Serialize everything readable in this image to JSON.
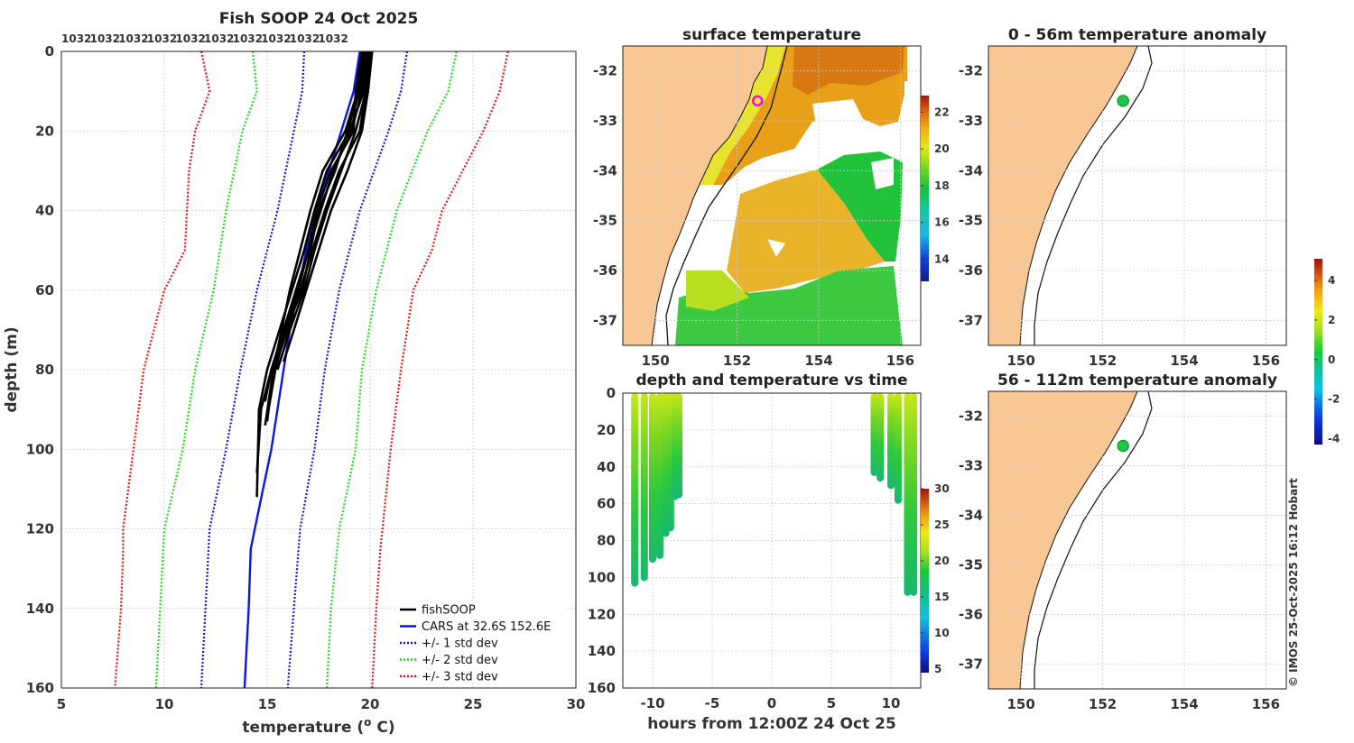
{
  "colors": {
    "land": "#f9c794",
    "fishsoop": "#000000",
    "cars": "#0a17e6",
    "std1": "#1616d8",
    "std2": "#2ad62a",
    "std3": "#e01818",
    "profile_highlight": "#ff00ff"
  },
  "chart_data": [
    {
      "id": "profile",
      "type": "line",
      "title": "Fish SOOP 24 Oct 2025",
      "station_ids": [
        "1032",
        "1032",
        "1032",
        "1032",
        "1032",
        "1032",
        "1032",
        "1032",
        "1032",
        "1032"
      ],
      "xlabel": "temperature (o C)",
      "xlabel_main": "temperature (",
      "xlabel_sup": "o",
      "xlabel_end": " C)",
      "ylabel": "depth (m)",
      "xlim": [
        5,
        30
      ],
      "ylim": [
        160,
        0
      ],
      "xticks": [
        5,
        10,
        15,
        20,
        25,
        30
      ],
      "yticks": [
        0,
        20,
        40,
        60,
        80,
        100,
        120,
        140,
        160
      ],
      "grid": true,
      "legend": [
        {
          "label": "fishSOOP",
          "style": "solid",
          "color_key": "fishsoop"
        },
        {
          "label": "CARS at 32.6S 152.6E",
          "style": "solid",
          "color_key": "cars"
        },
        {
          "label": "+/- 1 std dev",
          "style": "dotted",
          "color_key": "std1"
        },
        {
          "label": "+/- 2 std dev",
          "style": "dotted",
          "color_key": "std2"
        },
        {
          "label": "+/- 3 std dev",
          "style": "dotted",
          "color_key": "std3"
        }
      ],
      "series": [
        {
          "name": "CARS at 32.6S 152.6E",
          "color_key": "cars",
          "depth": [
            0,
            10,
            20,
            30,
            40,
            50,
            60,
            70,
            80,
            90,
            100,
            110,
            120,
            125,
            140,
            160
          ],
          "temp": [
            19.5,
            19.2,
            18.6,
            18.0,
            17.4,
            16.9,
            16.5,
            16.1,
            15.8,
            15.5,
            15.2,
            14.8,
            14.4,
            14.2,
            14.1,
            13.9
          ]
        },
        {
          "name": "+1 std dev",
          "color_key": "std1",
          "depth": [
            0,
            10,
            20,
            40,
            60,
            80,
            100,
            120,
            140,
            160
          ],
          "temp": [
            21.8,
            21.5,
            20.9,
            19.5,
            18.5,
            17.8,
            17.3,
            16.6,
            16.3,
            16.0
          ]
        },
        {
          "name": "-1 std dev",
          "color_key": "std1",
          "depth": [
            0,
            10,
            20,
            40,
            60,
            80,
            100,
            120,
            140,
            160
          ],
          "temp": [
            16.8,
            16.7,
            16.3,
            15.5,
            14.5,
            13.7,
            13.0,
            12.2,
            12.0,
            11.8
          ]
        },
        {
          "name": "+2 std dev",
          "color_key": "std2",
          "depth": [
            0,
            10,
            20,
            40,
            60,
            80,
            100,
            120,
            140,
            160
          ],
          "temp": [
            24.2,
            23.8,
            22.8,
            21.3,
            20.3,
            19.6,
            19.3,
            18.5,
            18.1,
            17.9
          ]
        },
        {
          "name": "-2 std dev",
          "color_key": "std2",
          "depth": [
            0,
            10,
            20,
            40,
            60,
            80,
            100,
            120,
            140,
            160
          ],
          "temp": [
            14.3,
            14.5,
            13.8,
            13.0,
            12.4,
            11.5,
            10.9,
            10.0,
            9.8,
            9.6
          ]
        },
        {
          "name": "+3 std dev",
          "color_key": "std3",
          "depth": [
            0,
            10,
            20,
            30,
            40,
            50,
            60,
            80,
            100,
            120,
            125,
            140,
            160
          ],
          "temp": [
            26.7,
            26.3,
            25.5,
            24.5,
            23.5,
            23.0,
            22.1,
            21.5,
            21.0,
            20.6,
            20.5,
            20.3,
            20.1
          ]
        },
        {
          "name": "-3 std dev",
          "color_key": "std3",
          "depth": [
            0,
            10,
            20,
            30,
            40,
            50,
            60,
            80,
            100,
            120,
            125,
            140,
            160
          ],
          "temp": [
            11.8,
            12.2,
            11.5,
            11.2,
            11.1,
            11.0,
            10.0,
            9.0,
            8.5,
            8.0,
            8.0,
            7.9,
            7.6
          ]
        }
      ],
      "fishsoop_profiles": [
        {
          "depth": [
            0,
            10,
            20,
            30,
            40,
            50,
            60,
            70,
            80,
            90,
            106
          ],
          "temp": [
            19.9,
            19.6,
            19.1,
            18.2,
            17.6,
            17.0,
            16.5,
            15.9,
            15.2,
            14.7,
            14.5
          ]
        },
        {
          "depth": [
            0,
            10,
            20,
            30,
            40,
            50,
            60,
            70,
            80,
            90,
            112
          ],
          "temp": [
            19.8,
            19.7,
            19.0,
            17.9,
            17.3,
            16.8,
            16.2,
            15.6,
            15.0,
            14.6,
            14.5
          ]
        },
        {
          "depth": [
            0,
            10,
            20,
            30,
            40,
            50,
            60,
            70,
            80,
            94
          ],
          "temp": [
            20.0,
            19.8,
            19.5,
            18.5,
            17.8,
            17.2,
            16.6,
            16.0,
            15.3,
            14.9
          ]
        },
        {
          "depth": [
            0,
            10,
            20,
            30,
            40,
            50,
            60,
            70,
            80,
            93
          ],
          "temp": [
            19.7,
            19.4,
            18.8,
            17.7,
            17.1,
            16.6,
            16.1,
            15.7,
            15.3,
            15.0
          ]
        },
        {
          "depth": [
            0,
            10,
            20,
            30,
            40,
            50,
            60,
            70,
            78
          ],
          "temp": [
            20.1,
            19.9,
            19.6,
            18.9,
            18.1,
            17.5,
            16.9,
            16.3,
            15.8
          ]
        },
        {
          "depth": [
            0,
            10,
            20,
            30,
            40,
            50,
            60,
            70,
            80,
            88
          ],
          "temp": [
            19.6,
            19.3,
            19.2,
            18.1,
            17.4,
            17.0,
            16.4,
            15.8,
            15.2,
            14.9
          ]
        },
        {
          "depth": [
            0,
            10,
            20,
            30,
            40,
            50,
            60,
            70,
            80
          ],
          "temp": [
            19.9,
            19.8,
            19.3,
            18.6,
            17.9,
            17.3,
            16.8,
            16.1,
            15.5
          ]
        },
        {
          "depth": [
            0,
            10,
            20,
            30,
            40,
            50,
            60,
            70,
            80,
            92
          ],
          "temp": [
            19.8,
            19.5,
            18.9,
            18.3,
            17.5,
            17.1,
            16.7,
            15.9,
            15.4,
            15.0
          ]
        }
      ]
    },
    {
      "id": "sst",
      "type": "heatmap",
      "title": "surface temperature",
      "xlim": [
        149.2,
        156.5
      ],
      "ylim": [
        -37.5,
        -31.5
      ],
      "xticks": [
        150,
        152,
        154,
        156
      ],
      "yticks": [
        -32,
        -33,
        -34,
        -35,
        -36,
        -37
      ],
      "colorbar": {
        "range": [
          12.8,
          22.9
        ],
        "ticks": [
          14,
          16,
          18,
          20,
          22
        ]
      },
      "station": {
        "lon": 152.5,
        "lat": -32.6
      }
    },
    {
      "id": "time_depth",
      "type": "scatter",
      "title": "depth and temperature vs time",
      "xlabel": "hours from 12:00Z 24 Oct 25",
      "xlim": [
        -12.5,
        12.5
      ],
      "ylim": [
        160,
        0
      ],
      "xticks": [
        -10,
        -5,
        0,
        5,
        10
      ],
      "yticks": [
        0,
        20,
        40,
        60,
        80,
        100,
        120,
        140,
        160
      ],
      "colorbar": {
        "range": [
          4.5,
          30
        ],
        "ticks": [
          5,
          10,
          15,
          20,
          25,
          30
        ]
      },
      "casts": [
        {
          "t": -11.5,
          "max_depth": 105
        },
        {
          "t": -10.7,
          "max_depth": 102
        },
        {
          "t": -10.0,
          "max_depth": 92
        },
        {
          "t": -9.4,
          "max_depth": 90
        },
        {
          "t": -8.9,
          "max_depth": 78
        },
        {
          "t": -8.5,
          "max_depth": 75
        },
        {
          "t": -8.1,
          "max_depth": 58
        },
        {
          "t": -7.8,
          "max_depth": 57
        },
        {
          "t": 8.6,
          "max_depth": 45
        },
        {
          "t": 9.1,
          "max_depth": 48
        },
        {
          "t": 10.0,
          "max_depth": 52
        },
        {
          "t": 10.6,
          "max_depth": 60
        },
        {
          "t": 11.4,
          "max_depth": 110
        },
        {
          "t": 11.9,
          "max_depth": 110
        }
      ]
    },
    {
      "id": "anom_shallow",
      "type": "heatmap",
      "title": "0 - 56m temperature anomaly",
      "xlim": [
        149.2,
        156.5
      ],
      "ylim": [
        -37.5,
        -31.5
      ],
      "xticks": [
        150,
        152,
        154,
        156
      ],
      "yticks": [
        -32,
        -33,
        -34,
        -35,
        -36,
        -37
      ],
      "station": {
        "lon": 152.5,
        "lat": -32.6
      }
    },
    {
      "id": "anom_deep",
      "type": "heatmap",
      "title": "56 - 112m temperature anomaly",
      "xlim": [
        149.2,
        156.5
      ],
      "ylim": [
        -37.5,
        -31.5
      ],
      "xticks": [
        150,
        152,
        154,
        156
      ],
      "yticks": [
        -32,
        -33,
        -34,
        -35,
        -36,
        -37
      ],
      "station": {
        "lon": 152.5,
        "lat": -32.6
      }
    },
    {
      "id": "anomaly_colorbar",
      "type": "heatmap",
      "range": [
        -4.3,
        5.1
      ],
      "ticks": [
        -4,
        -2,
        0,
        2,
        4
      ]
    }
  ],
  "credit": "© IMOS 25-Oct-2025 16:12 Hobart"
}
